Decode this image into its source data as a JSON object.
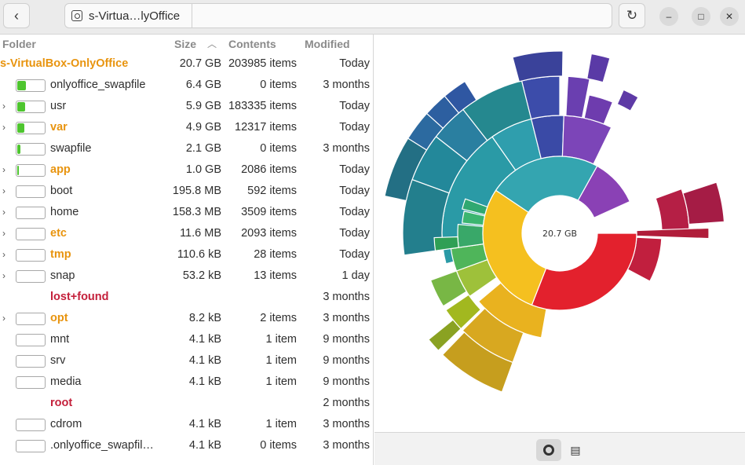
{
  "header": {
    "back_icon": "chevron-left-icon",
    "path_label": "s-Virtua…lyOffice",
    "reload_icon": "reload-icon"
  },
  "columns": {
    "folder": "Folder",
    "size": "Size",
    "contents": "Contents",
    "modified": "Modified"
  },
  "root": {
    "name": "s-VirtualBox-OnlyOffice",
    "size": "20.7 GB",
    "contents": "203985 items",
    "modified": "Today"
  },
  "rows": [
    {
      "name": "onlyoffice_swapfile",
      "size": "6.4 GB",
      "contents": "0 items",
      "modified": "3 months",
      "expander": false,
      "bar": true,
      "fill": 0.31,
      "style": "normal"
    },
    {
      "name": "usr",
      "size": "5.9 GB",
      "contents": "183335 items",
      "modified": "Today",
      "expander": true,
      "bar": true,
      "fill": 0.29,
      "style": "normal"
    },
    {
      "name": "var",
      "size": "4.9 GB",
      "contents": "12317 items",
      "modified": "Today",
      "expander": true,
      "bar": true,
      "fill": 0.24,
      "style": "orange"
    },
    {
      "name": "swapfile",
      "size": "2.1 GB",
      "contents": "0 items",
      "modified": "3 months",
      "expander": false,
      "bar": true,
      "fill": 0.1,
      "style": "normal"
    },
    {
      "name": "app",
      "size": "1.0 GB",
      "contents": "2086 items",
      "modified": "Today",
      "expander": true,
      "bar": true,
      "fill": 0.05,
      "style": "orange"
    },
    {
      "name": "boot",
      "size": "195.8 MB",
      "contents": "592 items",
      "modified": "Today",
      "expander": true,
      "bar": true,
      "fill": 0.01,
      "style": "normal"
    },
    {
      "name": "home",
      "size": "158.3 MB",
      "contents": "3509 items",
      "modified": "Today",
      "expander": true,
      "bar": true,
      "fill": 0.008,
      "style": "normal"
    },
    {
      "name": "etc",
      "size": "11.6 MB",
      "contents": "2093 items",
      "modified": "Today",
      "expander": true,
      "bar": true,
      "fill": 0,
      "style": "orange"
    },
    {
      "name": "tmp",
      "size": "110.6 kB",
      "contents": "28 items",
      "modified": "Today",
      "expander": true,
      "bar": true,
      "fill": 0,
      "style": "orange"
    },
    {
      "name": "snap",
      "size": "53.2 kB",
      "contents": "13 items",
      "modified": "1 day",
      "expander": true,
      "bar": true,
      "fill": 0,
      "style": "normal"
    },
    {
      "name": "lost+found",
      "size": "",
      "contents": "",
      "modified": "3 months",
      "expander": false,
      "bar": false,
      "fill": 0,
      "style": "red"
    },
    {
      "name": "opt",
      "size": "8.2 kB",
      "contents": "2 items",
      "modified": "3 months",
      "expander": true,
      "bar": true,
      "fill": 0,
      "style": "orange"
    },
    {
      "name": "mnt",
      "size": "4.1 kB",
      "contents": "1 item",
      "modified": "9 months",
      "expander": false,
      "bar": true,
      "fill": 0,
      "style": "normal"
    },
    {
      "name": "srv",
      "size": "4.1 kB",
      "contents": "1 item",
      "modified": "9 months",
      "expander": false,
      "bar": true,
      "fill": 0,
      "style": "normal"
    },
    {
      "name": "media",
      "size": "4.1 kB",
      "contents": "1 item",
      "modified": "9 months",
      "expander": false,
      "bar": true,
      "fill": 0,
      "style": "normal"
    },
    {
      "name": "root",
      "size": "",
      "contents": "",
      "modified": "2 months",
      "expander": false,
      "bar": false,
      "fill": 0,
      "style": "red"
    },
    {
      "name": "cdrom",
      "size": "4.1 kB",
      "contents": "1 item",
      "modified": "3 months",
      "expander": false,
      "bar": true,
      "fill": 0,
      "style": "normal"
    },
    {
      "name": ".onlyoffice_swapfil…",
      "size": "4.1 kB",
      "contents": "0 items",
      "modified": "3 months",
      "expander": false,
      "bar": true,
      "fill": 0,
      "style": "normal"
    }
  ],
  "ringchart": {
    "center_label": "20.7 GB",
    "start_angle_deg": 90,
    "ring1": [
      {
        "value": 6.4,
        "color": "#e3212d"
      },
      {
        "value": 5.9,
        "color": "#f5c01f"
      },
      {
        "value": 4.9,
        "color": "#34a5b0"
      },
      {
        "value": 2.1,
        "color": "#8a41b5"
      },
      {
        "value": 1.4,
        "color": "#ffffff"
      }
    ]
  },
  "toolbar": {
    "ring_icon": "ring-chart-icon",
    "tree_icon": "treemap-icon"
  }
}
